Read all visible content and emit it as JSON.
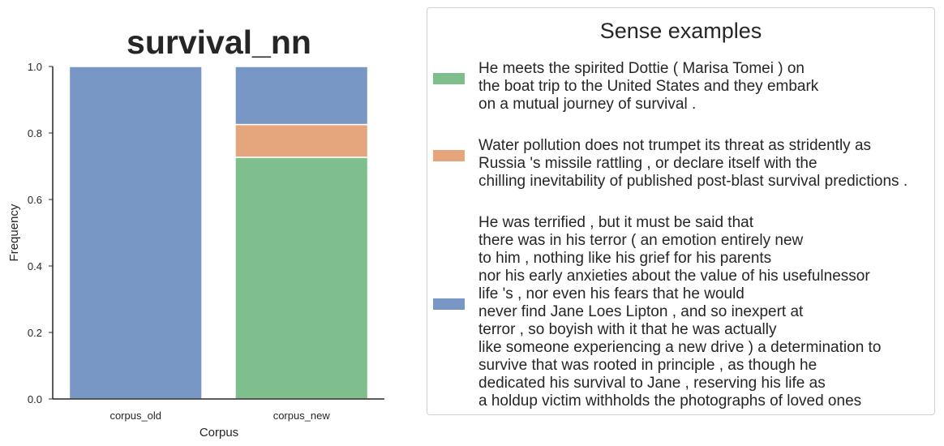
{
  "chart_data": {
    "type": "bar",
    "stacked": true,
    "title": "survival_nn",
    "xlabel": "Corpus",
    "ylabel": "Frequency",
    "ylim": [
      0,
      1.0
    ],
    "yticks": [
      "0.0",
      "0.2",
      "0.4",
      "0.6",
      "0.8",
      "1.0"
    ],
    "categories": [
      "corpus_old",
      "corpus_new"
    ],
    "series": [
      {
        "name": "",
        "color": "#7fbf8e",
        "values": [
          0.0,
          0.727
        ]
      },
      {
        "name": "",
        "color": "#e5a57d",
        "values": [
          0.0,
          0.0985
        ]
      },
      {
        "name": "",
        "color": "#7897c4",
        "values": [
          1.0,
          0.1745
        ]
      }
    ],
    "legend": {
      "title": "Sense examples",
      "position": "right",
      "entries": [
        {
          "color": "#7fbf8e",
          "text": "He meets the spirited Dottie ( Marisa Tomei ) on\nthe boat trip to the United States and they embark\non a mutual journey of survival ."
        },
        {
          "color": "#e5a57d",
          "text": "Water pollution does not trumpet its threat as stridently as\nRussia 's missile rattling , or declare itself with the\nchilling inevitability of published post-blast survival predictions ."
        },
        {
          "color": "#7897c4",
          "text": "He was terrified , but it must be said that\nthere was in his terror ( an emotion entirely new\nto him , nothing like his grief for his parents\nnor his early anxieties about the value of his usefulnessor\nlife 's , nor even his fears that he would\nnever find Jane Loes Lipton , and so inexpert at\nterror , so boyish with it that he was actually\nlike someone experiencing a new drive ) a determination to\nsurvive that was rooted in principle , as though he\ndedicated his survival to Jane , reserving his life as\na holdup victim withholds the photographs of loved ones"
        }
      ]
    }
  }
}
